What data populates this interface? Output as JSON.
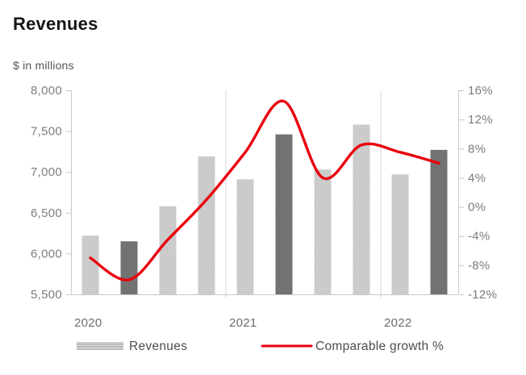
{
  "chart_data": {
    "type": "combo bar+line",
    "title": "Revenues",
    "subtitle": "$ in millions",
    "groups": [
      {
        "label": "2020",
        "quarters": 4
      },
      {
        "label": "2021",
        "quarters": 4
      },
      {
        "label": "2022",
        "quarters": 2
      }
    ],
    "series": [
      {
        "name": "Revenues",
        "type": "bar",
        "axis": "left",
        "values": [
          6220,
          6150,
          6580,
          7190,
          6910,
          7460,
          7030,
          7580,
          6970,
          7270
        ],
        "highlighted_indices": [
          1,
          5,
          9
        ]
      },
      {
        "name": "Comparable growth %",
        "type": "line",
        "axis": "right",
        "values": [
          -7,
          -10,
          -4.5,
          1,
          7.5,
          14.5,
          4,
          8.5,
          7.5,
          6
        ]
      }
    ],
    "left_axis": {
      "min": 5500,
      "max": 8000,
      "step": 500,
      "tick_labels": [
        "8,000",
        "7,500",
        "7,000",
        "6,500",
        "6,000",
        "5,500"
      ]
    },
    "right_axis": {
      "min": -12,
      "max": 16,
      "step": 4,
      "tick_labels": [
        "16%",
        "12%",
        "8%",
        "4%",
        "0%",
        "-4%",
        "-8%",
        "-12%"
      ]
    },
    "legend": [
      {
        "label": "Revenues",
        "swatch": "gray-pattern-bar"
      },
      {
        "label": "Comparable growth %",
        "swatch": "red-line"
      }
    ],
    "legend_position": "bottom",
    "grid": "vertical year separators only",
    "colors": {
      "bar_light_a": "#bfbfbf",
      "bar_light_b": "#d7d7d7",
      "bar_dark_a": "#686868",
      "bar_dark_b": "#7c7c7c",
      "line_red": "#e9000e",
      "axis_line": "#c9c9c9",
      "separator": "#d5d5d5",
      "axis_text": "#7d7d7d",
      "year_text": "#6e6e6e",
      "legend_text": "#4d4d4d",
      "legend_swatch_a": "#b0b0b0",
      "legend_swatch_b": "#dcdcdc",
      "title_text": "#161616",
      "subtitle_text": "#555555"
    }
  }
}
